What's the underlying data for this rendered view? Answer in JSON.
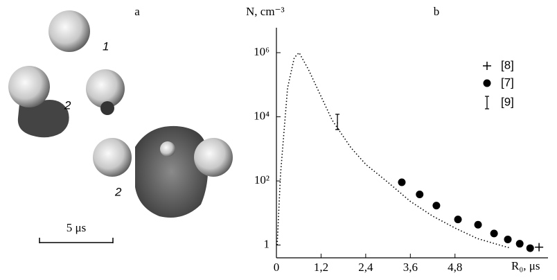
{
  "panel_a": {
    "label": "a",
    "particle_labels": [
      "1",
      "2",
      "2"
    ],
    "scale_bar": "5 μs"
  },
  "chart_data": {
    "type": "line",
    "panel_label": "b",
    "y_label": "N, cm⁻³",
    "x_label": "R₀, μs",
    "log_y": true,
    "xlim": [
      0,
      7.3
    ],
    "ylim": [
      0.4,
      6000000
    ],
    "xticks": [
      0,
      {
        "value": 1.2,
        "label": "1,2"
      },
      {
        "value": 2.4,
        "label": "2,4"
      },
      {
        "value": 3.6,
        "label": "3,6"
      },
      {
        "value": 4.8,
        "label": "4,8"
      }
    ],
    "yticks": [
      1,
      {
        "value": 100,
        "label": "10²"
      },
      {
        "value": 10000,
        "label": "10⁴"
      },
      {
        "value": 1000000,
        "label": "10⁶"
      }
    ],
    "series": [
      {
        "style": "dotted",
        "color": "#000000",
        "x": [
          0.02,
          0.11,
          0.3,
          0.48,
          0.61,
          0.86,
          1.2,
          1.5,
          2.0,
          2.4,
          3.0,
          3.6,
          4.2,
          4.8,
          5.4,
          6.0,
          6.3
        ],
        "values": [
          1,
          160,
          80000,
          700000,
          1000000,
          300000,
          43000,
          7800,
          1100,
          330,
          90,
          23,
          8,
          3.4,
          1.6,
          1,
          0.8
        ]
      },
      {
        "name": "[8]",
        "style": "plus",
        "color": "#000000",
        "x": [
          7.06
        ],
        "values": [
          0.86
        ]
      },
      {
        "name": "[7]",
        "style": "dot",
        "color": "#000000",
        "x": [
          3.37,
          3.85,
          4.3,
          4.88,
          5.42,
          5.85,
          6.22,
          6.54,
          6.82
        ],
        "values": [
          91,
          38,
          17,
          6.3,
          4.3,
          2.3,
          1.5,
          1.1,
          0.8
        ]
      },
      {
        "name": "[9]",
        "style": "errorbar",
        "color": "#000000",
        "x": [
          1.64
        ],
        "values": [
          6500
        ],
        "lower": [
          4000
        ],
        "upper": [
          12000
        ]
      }
    ]
  }
}
